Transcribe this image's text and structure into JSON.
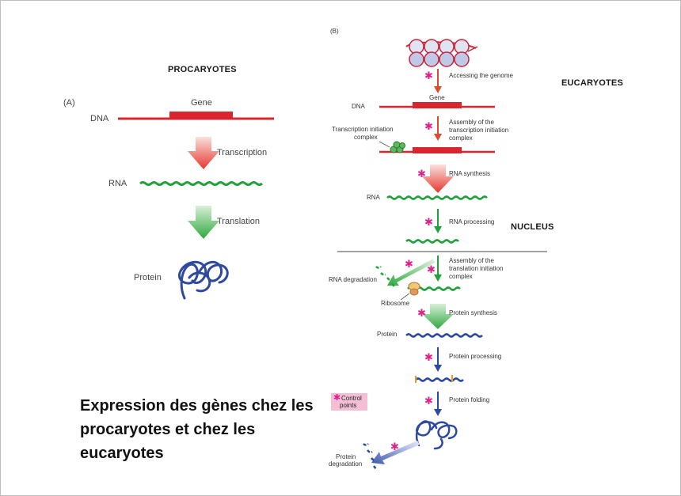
{
  "panel_a": {
    "panel_label": "(A)",
    "heading": "PROCARYOTES",
    "gene_label": "Gene",
    "dna_label": "DNA",
    "transcription_label": "Transcription",
    "rna_label": "RNA",
    "translation_label": "Translation",
    "protein_label": "Protein"
  },
  "panel_b": {
    "panel_label": "(B)",
    "heading": "EUCARYOTES",
    "nucleus_label": "NUCLEUS",
    "steps": {
      "accessing_genome": "Accessing the genome",
      "gene": "Gene",
      "dna": "DNA",
      "assembly_tx_1": "Assembly  of the",
      "assembly_tx_2": "transcription initiation",
      "assembly_tx_3": "complex",
      "tx_complex_1": "Transcription initiation",
      "tx_complex_2": "complex",
      "rna_synthesis": "RNA synthesis",
      "rna": "RNA",
      "rna_processing": "RNA processing",
      "assembly_tl_1": "Assembly of the",
      "assembly_tl_2": "translation initiation",
      "assembly_tl_3": "complex",
      "rna_degradation": "RNA degradation",
      "ribosome": "Ribosome",
      "protein_synthesis": "Protein synthesis",
      "protein": "Protein",
      "protein_processing": "Protein processing",
      "protein_folding": "Protein folding",
      "protein_degradation_1": "Protein",
      "protein_degradation_2": "degradation"
    },
    "legend": {
      "marker": "✱",
      "line1": "Control",
      "line2": "points"
    }
  },
  "caption": "Expression des gènes chez les procaryotes et chez les eucaryotes",
  "colors": {
    "dna_red": "#d9252e",
    "rna_green": "#1fa23a",
    "protein_blue": "#2e4aa0",
    "asterisk_pink": "#e0218a",
    "legend_pink": "#f4bfd5"
  }
}
